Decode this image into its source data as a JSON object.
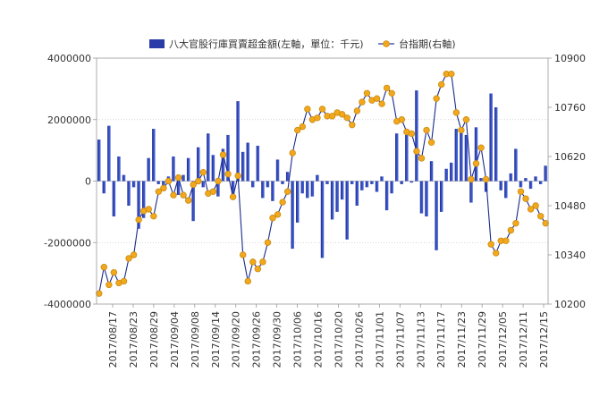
{
  "chart_data": {
    "type": "bar+line",
    "legend": {
      "placement": "top-center",
      "entries": [
        {
          "name": "八大官股行庫買賣超金額(左軸，單位：千元)",
          "type": "bar",
          "color": "#2a3ca8"
        },
        {
          "name": "台指期(右軸)",
          "type": "line",
          "color": "#f2a81c"
        }
      ]
    },
    "grid": true,
    "left_axis": {
      "min": -4000000,
      "max": 4000000,
      "ticks": [
        "4000000",
        "2000000",
        "0",
        "-2000000",
        "-4000000"
      ]
    },
    "right_axis": {
      "min": 10200,
      "max": 10900,
      "ticks": [
        "10900",
        "10760",
        "10620",
        "10480",
        "10340",
        "10200"
      ]
    },
    "x_tick_labels": [
      "2017/08/17",
      "2017/08/23",
      "2017/08/29",
      "2017/09/04",
      "2017/09/08",
      "2017/09/14",
      "2017/09/20",
      "2017/09/26",
      "2017/09/30",
      "2017/10/06",
      "2017/10/16",
      "2017/10/20",
      "2017/10/26",
      "2017/11/01",
      "2017/11/07",
      "2017/11/13",
      "2017/11/17",
      "2017/11/23",
      "2017/11/29",
      "2017/12/05",
      "2017/12/11",
      "2017/12/15"
    ],
    "series": [
      {
        "name": "八大官股行庫買賣超金額(左軸，單位：千元)",
        "type": "bar",
        "axis": "left",
        "values": [
          1350000,
          -400000,
          1800000,
          -1150000,
          800000,
          200000,
          -800000,
          -200000,
          -1550000,
          -1200000,
          750000,
          1700000,
          -100000,
          -300000,
          150000,
          800000,
          -450000,
          200000,
          750000,
          -1300000,
          1100000,
          -200000,
          1550000,
          850000,
          -500000,
          1050000,
          1500000,
          -500000,
          2600000,
          950000,
          1250000,
          -200000,
          1150000,
          -550000,
          -200000,
          -650000,
          700000,
          -100000,
          300000,
          -2200000,
          -1350000,
          -400000,
          -550000,
          -500000,
          200000,
          -2500000,
          -100000,
          -1250000,
          -1000000,
          -600000,
          -1900000,
          -100000,
          -800000,
          -300000,
          -200000,
          -100000,
          -350000,
          150000,
          -950000,
          -400000,
          1550000,
          -100000,
          1500000,
          -50000,
          2950000,
          -1050000,
          -1150000,
          650000,
          -2250000,
          -1000000,
          400000,
          600000,
          1700000,
          1700000,
          1500000,
          -700000,
          1750000,
          100000,
          -350000,
          2850000,
          2400000,
          -300000,
          -550000,
          250000,
          1050000,
          -200000,
          100000,
          -250000,
          150000,
          -100000,
          500000
        ]
      },
      {
        "name": "台指期(右軸)",
        "type": "line",
        "axis": "right",
        "values": [
          10230,
          10305,
          10255,
          10290,
          10260,
          10265,
          10330,
          10340,
          10440,
          10465,
          10470,
          10450,
          10520,
          10530,
          10550,
          10510,
          10560,
          10510,
          10495,
          10540,
          10550,
          10575,
          10515,
          10520,
          10550,
          10625,
          10570,
          10505,
          10565,
          10340,
          10265,
          10320,
          10300,
          10320,
          10375,
          10445,
          10455,
          10490,
          10520,
          10630,
          10695,
          10705,
          10755,
          10725,
          10730,
          10755,
          10735,
          10735,
          10745,
          10740,
          10730,
          10710,
          10750,
          10775,
          10800,
          10780,
          10785,
          10770,
          10815,
          10800,
          10720,
          10725,
          10690,
          10685,
          10635,
          10615,
          10695,
          10660,
          10785,
          10825,
          10855,
          10855,
          10745,
          10695,
          10725,
          10555,
          10600,
          10645,
          10555,
          10370,
          10345,
          10380,
          10380,
          10410,
          10430,
          10520,
          10500,
          10470,
          10480,
          10450,
          10430
        ]
      }
    ]
  }
}
